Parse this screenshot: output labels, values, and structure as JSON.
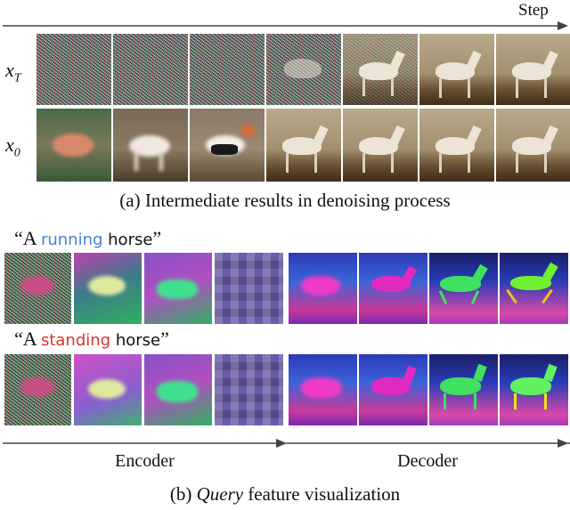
{
  "step_label": "Step",
  "row_labels": {
    "xt_base": "x",
    "xt_sub": "T",
    "x0_base": "x",
    "x0_sub": "0"
  },
  "caption_a": "(a) Intermediate results in denoising process",
  "prompt1": {
    "open": "“A ",
    "word": "running",
    "rest": " horse",
    "close": "”",
    "word_color": "#4a7fd0"
  },
  "prompt2": {
    "open": "“A ",
    "word": "standing",
    "rest": " horse",
    "close": "”",
    "word_color": "#e03030"
  },
  "encoder_label": "Encoder",
  "decoder_label": "Decoder",
  "caption_b": {
    "prefix": "(b) ",
    "italic": "Query",
    "suffix": " feature visualization"
  }
}
